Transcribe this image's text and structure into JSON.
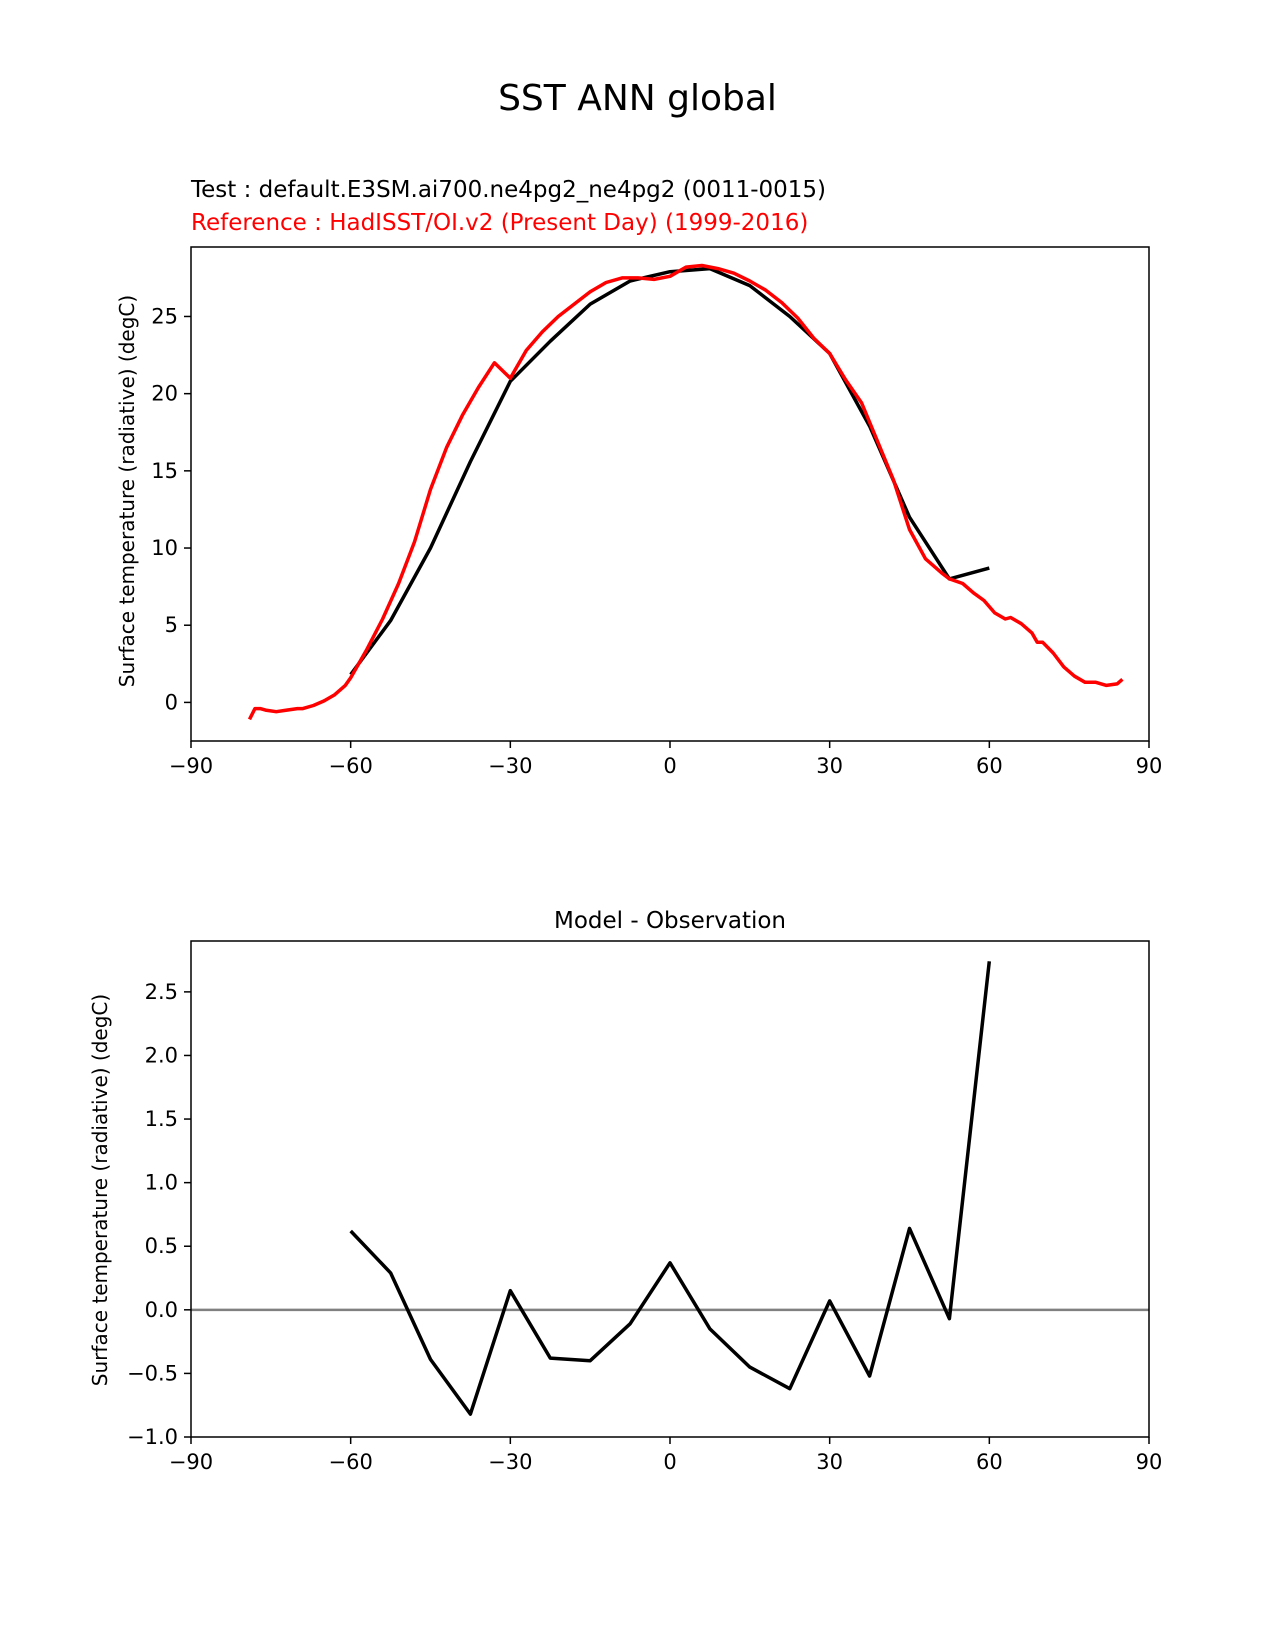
{
  "figure": {
    "suptitle": "SST ANN global"
  },
  "chart_data": [
    {
      "type": "line",
      "test_label": "Test : default.E3SM.ai700.ne4pg2_ne4pg2 (0011-0015)",
      "reference_label": "Reference : HadISST/OI.v2 (Present Day) (1999-2016)",
      "xlabel": "",
      "ylabel": "Surface temperature (radiative) (degC)",
      "xlim": [
        -90,
        90
      ],
      "ylim": [
        -2.5,
        29.5
      ],
      "xticks": [
        -90,
        -60,
        -30,
        0,
        30,
        60,
        90
      ],
      "xtick_labels": [
        "−90",
        "−60",
        "−30",
        "0",
        "30",
        "60",
        "90"
      ],
      "yticks": [
        0,
        5,
        10,
        15,
        20,
        25
      ],
      "ytick_labels": [
        "0",
        "5",
        "10",
        "15",
        "20",
        "25"
      ],
      "grid": false,
      "series": [
        {
          "color": "#000000",
          "x": [
            -60,
            -52.5,
            -45,
            -37.5,
            -30,
            -22.5,
            -15,
            -7.5,
            0,
            7.5,
            15,
            22.5,
            30,
            37.5,
            45,
            52.5,
            60
          ],
          "y": [
            1.8,
            5.3,
            10.0,
            15.6,
            20.8,
            23.4,
            25.8,
            27.3,
            27.9,
            28.1,
            27.0,
            25.0,
            22.6,
            17.9,
            12.0,
            8.0,
            8.7
          ]
        },
        {
          "color": "#ff0000",
          "x": [
            -79,
            -78,
            -77,
            -76,
            -74,
            -72,
            -70,
            -69,
            -67,
            -65,
            -63,
            -61,
            -60,
            -57,
            -54,
            -51,
            -48,
            -45,
            -42,
            -39,
            -36,
            -33,
            -30,
            -27,
            -24,
            -21,
            -18,
            -15,
            -12,
            -9,
            -6,
            -3,
            0,
            3,
            6,
            9,
            12,
            15,
            18,
            21,
            24,
            27,
            30,
            33,
            36,
            39,
            42,
            45,
            48,
            51,
            52.5,
            55,
            57,
            59,
            61,
            63,
            64,
            66,
            67,
            68,
            69,
            70,
            72,
            74,
            76,
            78,
            80,
            82,
            84,
            85
          ],
          "y": [
            -1.1,
            -0.4,
            -0.4,
            -0.5,
            -0.6,
            -0.5,
            -0.4,
            -0.4,
            -0.2,
            0.1,
            0.5,
            1.1,
            1.6,
            3.4,
            5.4,
            7.7,
            10.4,
            13.8,
            16.5,
            18.6,
            20.4,
            22.0,
            21.0,
            22.8,
            24.0,
            25.0,
            25.8,
            26.6,
            27.2,
            27.5,
            27.5,
            27.4,
            27.6,
            28.2,
            28.3,
            28.1,
            27.8,
            27.3,
            26.7,
            25.9,
            24.9,
            23.6,
            22.6,
            20.9,
            19.4,
            16.9,
            14.4,
            11.2,
            9.3,
            8.4,
            8.0,
            7.7,
            7.1,
            6.6,
            5.8,
            5.4,
            5.5,
            5.1,
            4.8,
            4.5,
            3.9,
            3.9,
            3.2,
            2.3,
            1.7,
            1.3,
            1.3,
            1.1,
            1.2,
            1.5
          ]
        }
      ]
    },
    {
      "type": "line",
      "title": "Model - Observation",
      "xlabel": "",
      "ylabel": "Surface temperature (radiative) (degC)",
      "xlim": [
        -90,
        90
      ],
      "ylim": [
        -1.0,
        2.9
      ],
      "xticks": [
        -90,
        -60,
        -30,
        0,
        30,
        60,
        90
      ],
      "xtick_labels": [
        "−90",
        "−60",
        "−30",
        "0",
        "30",
        "60",
        "90"
      ],
      "yticks": [
        -1.0,
        -0.5,
        0.0,
        0.5,
        1.0,
        1.5,
        2.0,
        2.5
      ],
      "ytick_labels": [
        "−1.0",
        "−0.5",
        "0.0",
        "0.5",
        "1.0",
        "1.5",
        "2.0",
        "2.5"
      ],
      "grid": false,
      "reference_line": {
        "y": 0,
        "color": "#808080"
      },
      "series": [
        {
          "color": "#000000",
          "x": [
            -60,
            -52.5,
            -45,
            -37.5,
            -30,
            -22.5,
            -15,
            -7.5,
            0,
            7.5,
            15,
            22.5,
            30,
            37.5,
            45,
            52.5,
            60
          ],
          "y": [
            0.62,
            0.29,
            -0.39,
            -0.82,
            0.15,
            -0.38,
            -0.4,
            -0.11,
            0.37,
            -0.15,
            -0.45,
            -0.62,
            0.07,
            -0.52,
            0.64,
            -0.07,
            2.74
          ]
        }
      ]
    }
  ]
}
